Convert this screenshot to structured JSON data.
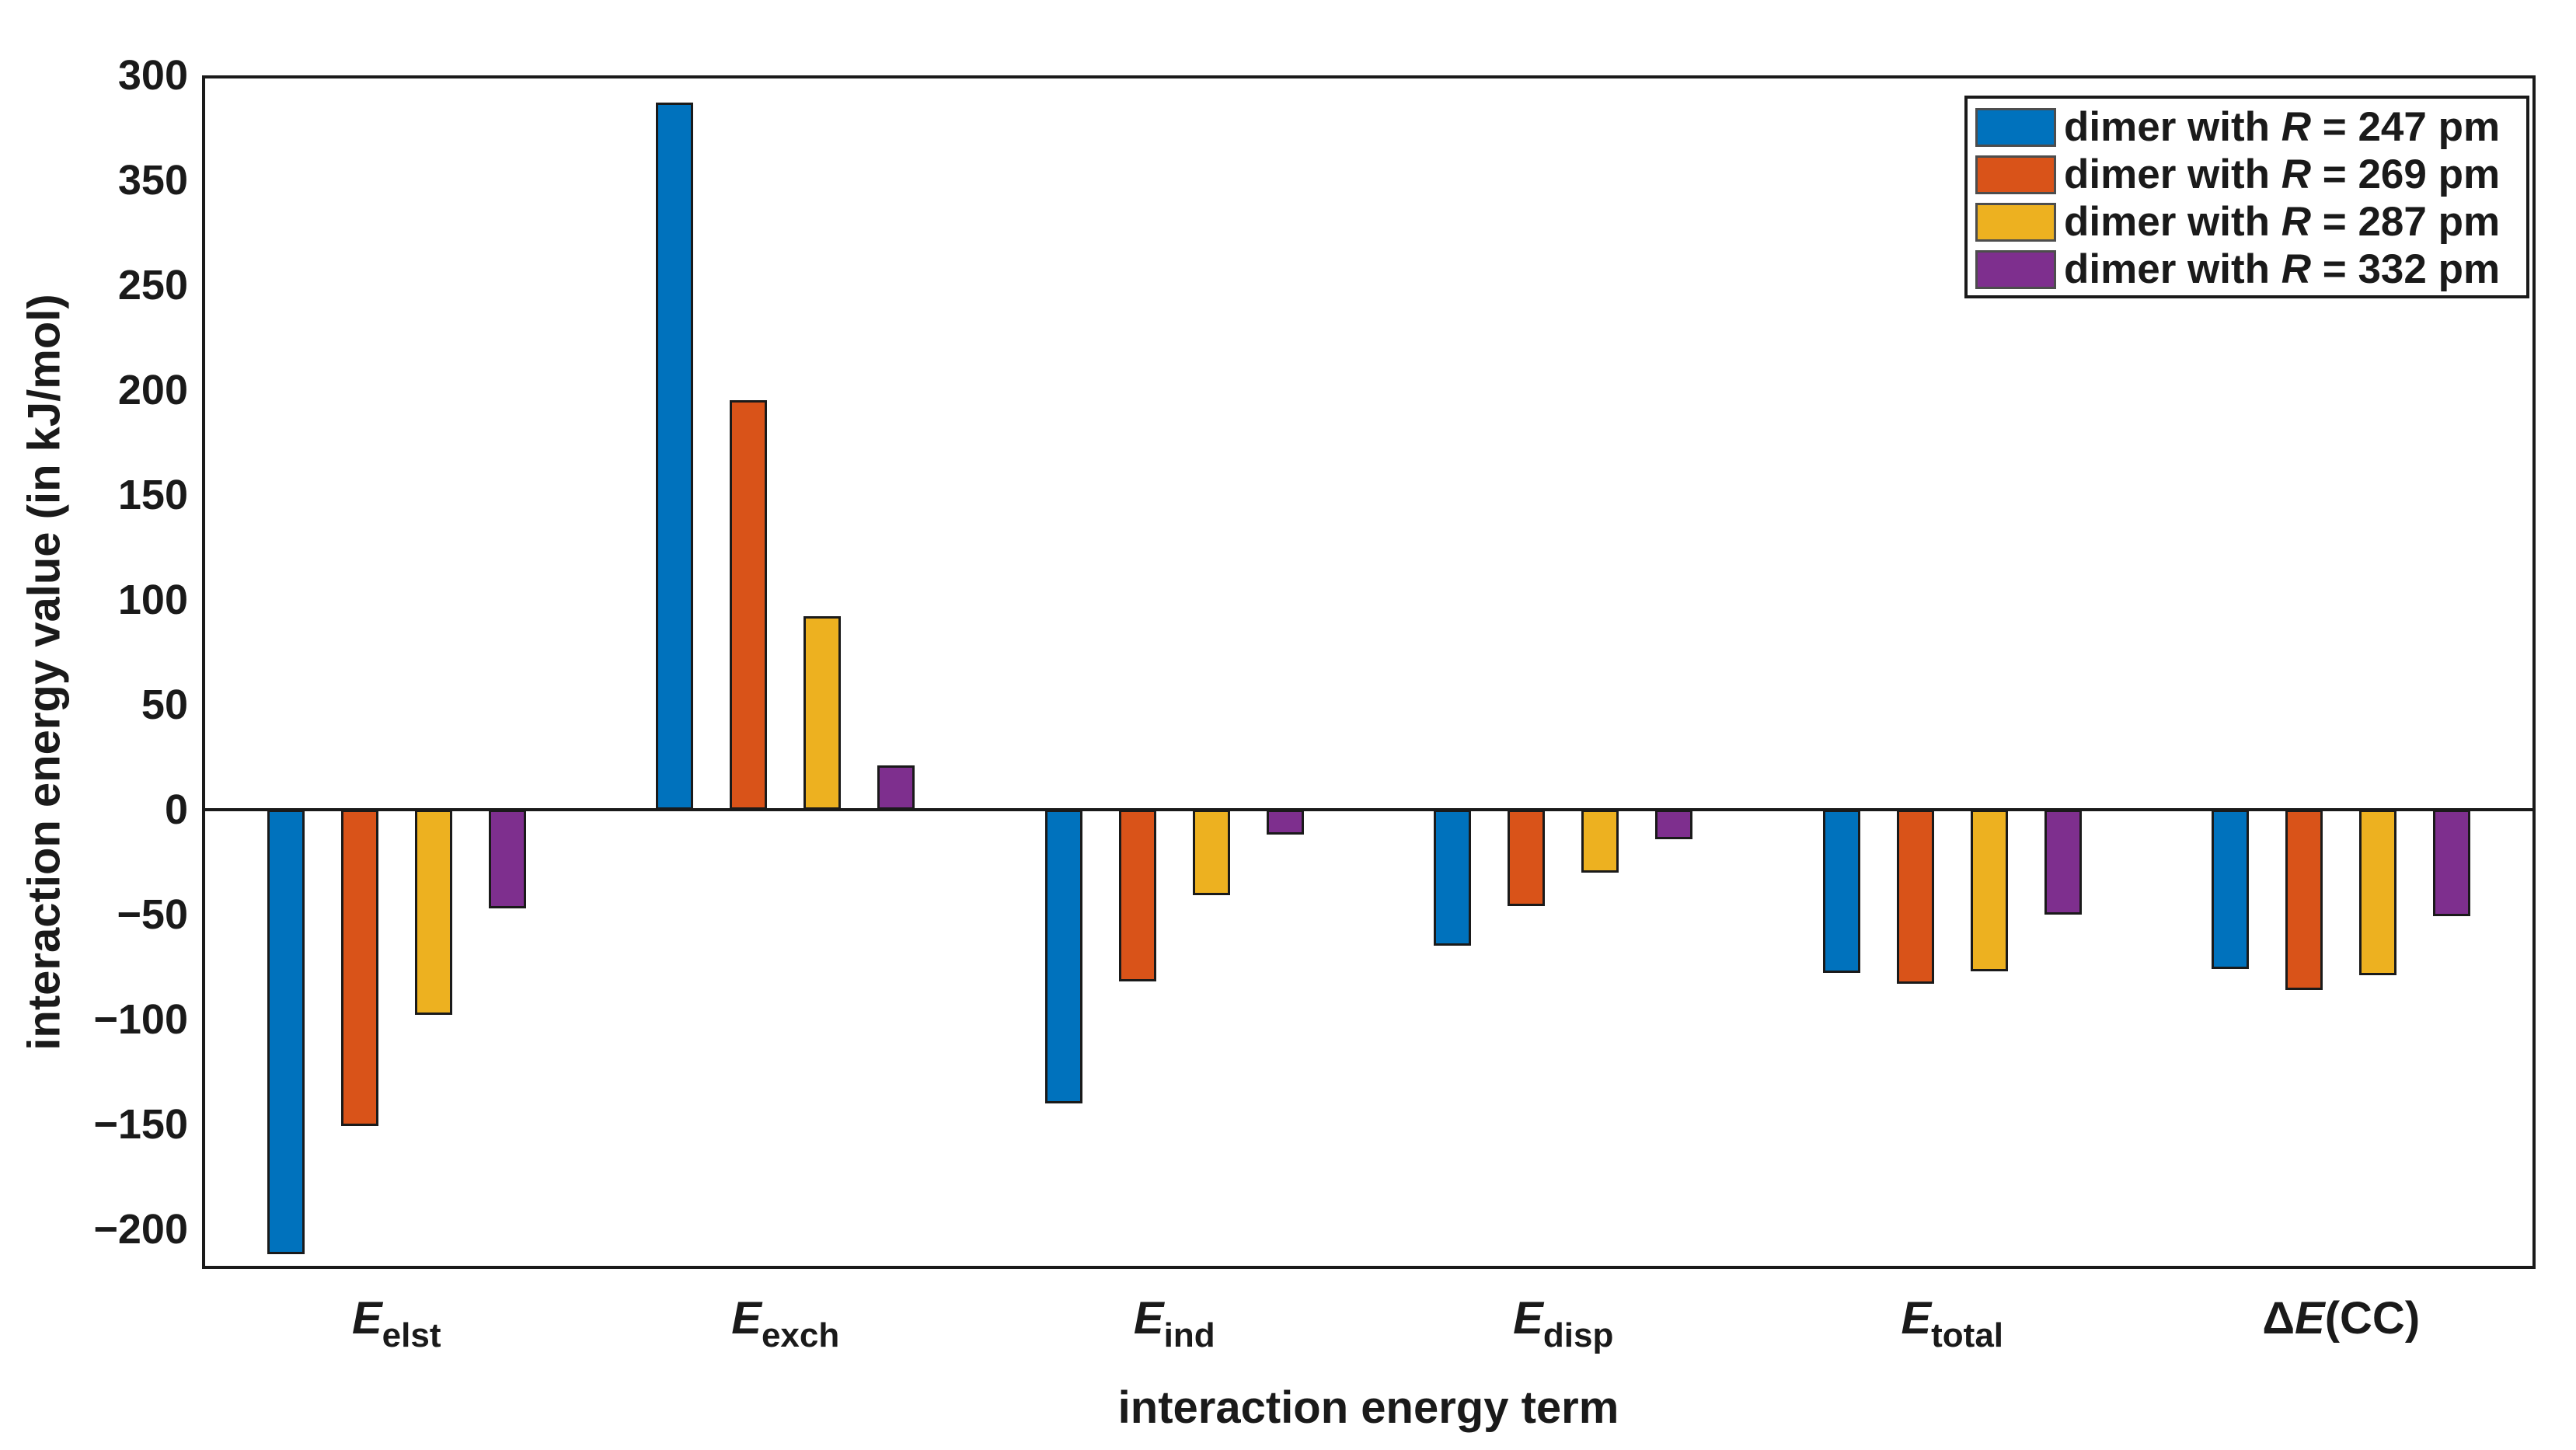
{
  "figure": {
    "background": "#ffffff",
    "axis_color": "#1a1a1a"
  },
  "y_axis": {
    "title": "interaction energy value (in kJ/mol)",
    "tick_labels_top_to_bottom": [
      "300",
      "350",
      "250",
      "200",
      "150",
      "100",
      "50",
      "0",
      "−50",
      "−100",
      "−150",
      "−200"
    ]
  },
  "x_axis": {
    "title": "interaction energy term"
  },
  "legend": {
    "items": [
      {
        "pre": "dimer with ",
        "var": "R",
        "post": " = 247 pm",
        "color": "#0072BD"
      },
      {
        "pre": "dimer with ",
        "var": "R",
        "post": " = 269 pm",
        "color": "#D95319"
      },
      {
        "pre": "dimer with ",
        "var": "R",
        "post": " = 287 pm",
        "color": "#EDB120"
      },
      {
        "pre": "dimer with ",
        "var": "R",
        "post": " = 332 pm",
        "color": "#7E2F8E"
      }
    ]
  },
  "chart_data": {
    "type": "bar",
    "title": "",
    "xlabel": "interaction energy term",
    "ylabel": "interaction energy value (in kJ/mol)",
    "categories_text": [
      "E_elst",
      "E_exch",
      "E_ind",
      "E_disp",
      "E_total",
      "ΔE(CC)"
    ],
    "categories_rich": [
      {
        "pre": "",
        "sym": "E",
        "sub": "elst",
        "post": ""
      },
      {
        "pre": "",
        "sym": "E",
        "sub": "exch",
        "post": ""
      },
      {
        "pre": "",
        "sym": "E",
        "sub": "ind",
        "post": ""
      },
      {
        "pre": "",
        "sym": "E",
        "sub": "disp",
        "post": ""
      },
      {
        "pre": "",
        "sym": "E",
        "sub": "total",
        "post": ""
      },
      {
        "pre": "Δ",
        "sym": "E",
        "sub": "",
        "post": "(CC)"
      }
    ],
    "series": [
      {
        "name": "dimer with R = 247 pm",
        "color": "#0072BD",
        "values": [
          -212,
          337,
          -140,
          -65,
          -78,
          -76
        ]
      },
      {
        "name": "dimer with R = 269 pm",
        "color": "#D95319",
        "values": [
          -151,
          195,
          -82,
          -46,
          -83,
          -86
        ]
      },
      {
        "name": "dimer with R = 287 pm",
        "color": "#EDB120",
        "values": [
          -98,
          92,
          -41,
          -30,
          -77,
          -79
        ]
      },
      {
        "name": "dimer with R = 332 pm",
        "color": "#7E2F8E",
        "values": [
          -47,
          21,
          -12,
          -14,
          -50,
          -51
        ]
      }
    ],
    "units": "kJ/mol",
    "y_axis_top_value": 350,
    "y_axis_bottom_value": -219,
    "y_tick_step": 50,
    "ytick_labels_as_printed_top_to_bottom": [
      "300",
      "350",
      "250",
      "200",
      "150",
      "100",
      "50",
      "0",
      "−50",
      "−100",
      "−150",
      "−200"
    ],
    "legend_position": "top-right",
    "grid": false,
    "baseline": 0
  }
}
